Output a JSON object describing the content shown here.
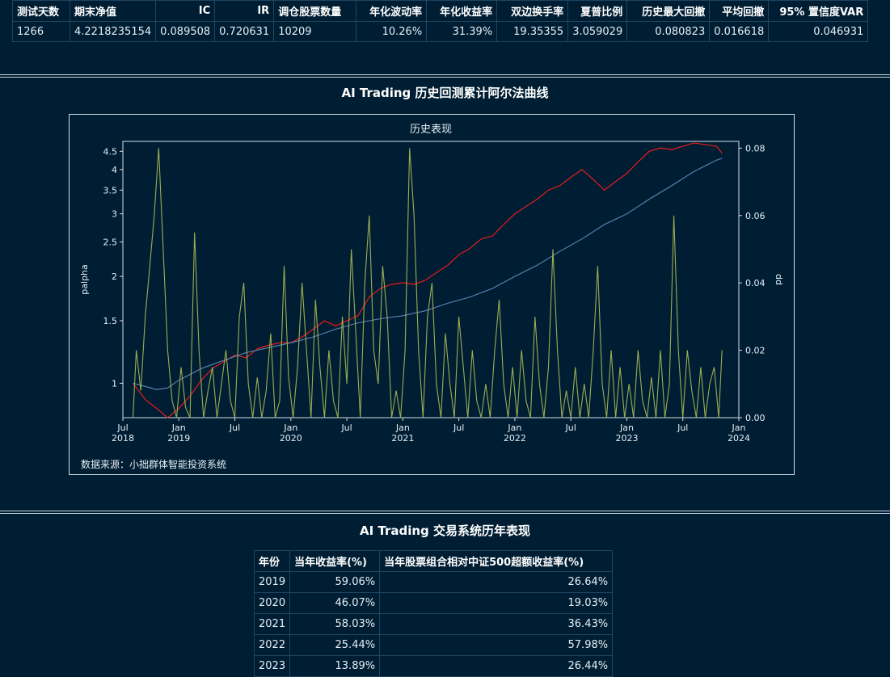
{
  "stats": {
    "headers": [
      "测试天数",
      "期末净值",
      "IC",
      "IR",
      "调仓股票数量",
      "年化波动率",
      "年化收益率",
      "双边换手率",
      "夏普比例",
      "历史最大回撤",
      "平均回撤",
      "95% 置信度VAR"
    ],
    "values": [
      "1266",
      "4.2218235154",
      "0.089508",
      "0.720631",
      "10209",
      "10.26%",
      "31.39%",
      "19.35355",
      "3.059029",
      "0.080823",
      "0.016618",
      "0.046931"
    ]
  },
  "chart_section_title": "AI Trading 历史回测累计阿尔法曲线",
  "chart_data": {
    "type": "line",
    "title": "历史表现",
    "ylabel_left": "palpha",
    "ylabel_right": "dd",
    "yscale_left": "log",
    "ylim_left": [
      0.8,
      4.8
    ],
    "ylim_right": [
      0,
      0.082
    ],
    "yticks_left": [
      "1",
      "1.5",
      "2",
      "2.5",
      "3",
      "3.5",
      "4",
      "4.5"
    ],
    "yticks_right": [
      "0.00",
      "0.02",
      "0.04",
      "0.06",
      "0.08"
    ],
    "xticks": [
      "Jul 2018",
      "Jan 2019",
      "Jul",
      "Jan 2020",
      "Jul",
      "Jan 2021",
      "Jul",
      "Jan 2022",
      "Jul",
      "Jan 2023",
      "Jul",
      "Jan 2024"
    ],
    "x_range": [
      "2018-07",
      "2024-01"
    ],
    "series_colors": {
      "red": "#ff1a1a",
      "blue": "#5b86b8",
      "green": "#9cad52"
    },
    "series": [
      {
        "color": "#ff1a1a",
        "axis": "left",
        "points": [
          [
            2018.59,
            1.0
          ],
          [
            2018.7,
            0.9
          ],
          [
            2018.8,
            0.85
          ],
          [
            2018.9,
            0.8
          ],
          [
            2019.0,
            0.85
          ],
          [
            2019.1,
            0.92
          ],
          [
            2019.2,
            1.02
          ],
          [
            2019.3,
            1.1
          ],
          [
            2019.4,
            1.15
          ],
          [
            2019.5,
            1.2
          ],
          [
            2019.6,
            1.18
          ],
          [
            2019.7,
            1.25
          ],
          [
            2019.8,
            1.28
          ],
          [
            2019.9,
            1.3
          ],
          [
            2020.0,
            1.3
          ],
          [
            2020.1,
            1.35
          ],
          [
            2020.2,
            1.42
          ],
          [
            2020.3,
            1.5
          ],
          [
            2020.4,
            1.45
          ],
          [
            2020.5,
            1.5
          ],
          [
            2020.6,
            1.55
          ],
          [
            2020.7,
            1.75
          ],
          [
            2020.8,
            1.85
          ],
          [
            2020.9,
            1.9
          ],
          [
            2021.0,
            1.92
          ],
          [
            2021.1,
            1.9
          ],
          [
            2021.2,
            1.95
          ],
          [
            2021.3,
            2.05
          ],
          [
            2021.4,
            2.15
          ],
          [
            2021.5,
            2.3
          ],
          [
            2021.6,
            2.4
          ],
          [
            2021.7,
            2.55
          ],
          [
            2021.8,
            2.6
          ],
          [
            2021.9,
            2.8
          ],
          [
            2022.0,
            3.0
          ],
          [
            2022.1,
            3.15
          ],
          [
            2022.2,
            3.3
          ],
          [
            2022.3,
            3.5
          ],
          [
            2022.4,
            3.6
          ],
          [
            2022.5,
            3.8
          ],
          [
            2022.6,
            4.0
          ],
          [
            2022.7,
            3.75
          ],
          [
            2022.8,
            3.5
          ],
          [
            2022.9,
            3.7
          ],
          [
            2023.0,
            3.9
          ],
          [
            2023.1,
            4.2
          ],
          [
            2023.2,
            4.5
          ],
          [
            2023.3,
            4.6
          ],
          [
            2023.4,
            4.55
          ],
          [
            2023.5,
            4.65
          ],
          [
            2023.6,
            4.75
          ],
          [
            2023.7,
            4.7
          ],
          [
            2023.8,
            4.65
          ],
          [
            2023.85,
            4.45
          ]
        ]
      },
      {
        "color": "#5b86b8",
        "axis": "left",
        "points": [
          [
            2018.59,
            1.0
          ],
          [
            2018.7,
            0.98
          ],
          [
            2018.8,
            0.96
          ],
          [
            2018.9,
            0.97
          ],
          [
            2019.0,
            1.02
          ],
          [
            2019.2,
            1.1
          ],
          [
            2019.4,
            1.16
          ],
          [
            2019.6,
            1.22
          ],
          [
            2019.8,
            1.26
          ],
          [
            2020.0,
            1.3
          ],
          [
            2020.2,
            1.35
          ],
          [
            2020.4,
            1.42
          ],
          [
            2020.6,
            1.48
          ],
          [
            2020.8,
            1.52
          ],
          [
            2021.0,
            1.55
          ],
          [
            2021.2,
            1.6
          ],
          [
            2021.4,
            1.68
          ],
          [
            2021.6,
            1.75
          ],
          [
            2021.8,
            1.85
          ],
          [
            2022.0,
            2.0
          ],
          [
            2022.2,
            2.15
          ],
          [
            2022.4,
            2.35
          ],
          [
            2022.6,
            2.55
          ],
          [
            2022.8,
            2.8
          ],
          [
            2023.0,
            3.0
          ],
          [
            2023.2,
            3.3
          ],
          [
            2023.4,
            3.6
          ],
          [
            2023.6,
            3.95
          ],
          [
            2023.8,
            4.25
          ],
          [
            2023.85,
            4.3
          ]
        ]
      },
      {
        "color": "#9cad52",
        "axis": "right",
        "points": [
          [
            2018.59,
            0.0
          ],
          [
            2018.62,
            0.02
          ],
          [
            2018.66,
            0.008
          ],
          [
            2018.7,
            0.03
          ],
          [
            2018.74,
            0.045
          ],
          [
            2018.78,
            0.06
          ],
          [
            2018.82,
            0.08
          ],
          [
            2018.86,
            0.05
          ],
          [
            2018.9,
            0.02
          ],
          [
            2018.94,
            0.005
          ],
          [
            2018.98,
            0.0
          ],
          [
            2019.02,
            0.015
          ],
          [
            2019.06,
            0.003
          ],
          [
            2019.1,
            0.0
          ],
          [
            2019.14,
            0.055
          ],
          [
            2019.18,
            0.02
          ],
          [
            2019.22,
            0.0
          ],
          [
            2019.26,
            0.008
          ],
          [
            2019.3,
            0.015
          ],
          [
            2019.34,
            0.0
          ],
          [
            2019.38,
            0.01
          ],
          [
            2019.42,
            0.02
          ],
          [
            2019.46,
            0.005
          ],
          [
            2019.5,
            0.0
          ],
          [
            2019.54,
            0.03
          ],
          [
            2019.58,
            0.04
          ],
          [
            2019.62,
            0.01
          ],
          [
            2019.66,
            0.0
          ],
          [
            2019.7,
            0.012
          ],
          [
            2019.74,
            0.0
          ],
          [
            2019.78,
            0.008
          ],
          [
            2019.82,
            0.025
          ],
          [
            2019.86,
            0.0
          ],
          [
            2019.9,
            0.005
          ],
          [
            2019.94,
            0.045
          ],
          [
            2019.98,
            0.012
          ],
          [
            2020.02,
            0.0
          ],
          [
            2020.06,
            0.015
          ],
          [
            2020.1,
            0.04
          ],
          [
            2020.14,
            0.02
          ],
          [
            2020.18,
            0.0
          ],
          [
            2020.22,
            0.035
          ],
          [
            2020.26,
            0.015
          ],
          [
            2020.3,
            0.0
          ],
          [
            2020.34,
            0.02
          ],
          [
            2020.38,
            0.005
          ],
          [
            2020.42,
            0.0
          ],
          [
            2020.46,
            0.03
          ],
          [
            2020.5,
            0.01
          ],
          [
            2020.54,
            0.05
          ],
          [
            2020.58,
            0.025
          ],
          [
            2020.62,
            0.0
          ],
          [
            2020.66,
            0.04
          ],
          [
            2020.7,
            0.06
          ],
          [
            2020.74,
            0.02
          ],
          [
            2020.78,
            0.01
          ],
          [
            2020.82,
            0.045
          ],
          [
            2020.86,
            0.03
          ],
          [
            2020.9,
            0.0
          ],
          [
            2020.94,
            0.008
          ],
          [
            2020.98,
            0.0
          ],
          [
            2021.02,
            0.02
          ],
          [
            2021.06,
            0.08
          ],
          [
            2021.1,
            0.06
          ],
          [
            2021.14,
            0.02
          ],
          [
            2021.18,
            0.0
          ],
          [
            2021.22,
            0.03
          ],
          [
            2021.26,
            0.04
          ],
          [
            2021.3,
            0.01
          ],
          [
            2021.34,
            0.0
          ],
          [
            2021.38,
            0.025
          ],
          [
            2021.42,
            0.01
          ],
          [
            2021.46,
            0.0
          ],
          [
            2021.5,
            0.03
          ],
          [
            2021.54,
            0.015
          ],
          [
            2021.58,
            0.0
          ],
          [
            2021.62,
            0.02
          ],
          [
            2021.66,
            0.005
          ],
          [
            2021.7,
            0.0
          ],
          [
            2021.74,
            0.01
          ],
          [
            2021.78,
            0.0
          ],
          [
            2021.82,
            0.02
          ],
          [
            2021.86,
            0.035
          ],
          [
            2021.9,
            0.01
          ],
          [
            2021.94,
            0.0
          ],
          [
            2021.98,
            0.015
          ],
          [
            2022.02,
            0.0
          ],
          [
            2022.06,
            0.02
          ],
          [
            2022.1,
            0.005
          ],
          [
            2022.14,
            0.0
          ],
          [
            2022.18,
            0.03
          ],
          [
            2022.22,
            0.01
          ],
          [
            2022.26,
            0.0
          ],
          [
            2022.3,
            0.015
          ],
          [
            2022.34,
            0.05
          ],
          [
            2022.38,
            0.02
          ],
          [
            2022.42,
            0.0
          ],
          [
            2022.46,
            0.008
          ],
          [
            2022.5,
            0.0
          ],
          [
            2022.54,
            0.015
          ],
          [
            2022.58,
            0.0
          ],
          [
            2022.62,
            0.01
          ],
          [
            2022.66,
            0.0
          ],
          [
            2022.7,
            0.02
          ],
          [
            2022.74,
            0.045
          ],
          [
            2022.78,
            0.01
          ],
          [
            2022.82,
            0.0
          ],
          [
            2022.86,
            0.02
          ],
          [
            2022.9,
            0.0
          ],
          [
            2022.94,
            0.015
          ],
          [
            2022.98,
            0.0
          ],
          [
            2023.02,
            0.01
          ],
          [
            2023.06,
            0.0
          ],
          [
            2023.1,
            0.02
          ],
          [
            2023.14,
            0.005
          ],
          [
            2023.18,
            0.0
          ],
          [
            2023.22,
            0.012
          ],
          [
            2023.26,
            0.0
          ],
          [
            2023.3,
            0.02
          ],
          [
            2023.34,
            0.0
          ],
          [
            2023.38,
            0.01
          ],
          [
            2023.42,
            0.06
          ],
          [
            2023.46,
            0.02
          ],
          [
            2023.5,
            0.0
          ],
          [
            2023.54,
            0.02
          ],
          [
            2023.58,
            0.008
          ],
          [
            2023.62,
            0.0
          ],
          [
            2023.66,
            0.015
          ],
          [
            2023.7,
            0.0
          ],
          [
            2023.74,
            0.01
          ],
          [
            2023.78,
            0.015
          ],
          [
            2023.82,
            0.0
          ],
          [
            2023.85,
            0.02
          ]
        ]
      }
    ]
  },
  "data_source": "数据来源：小拙群体智能投资系统",
  "yearly_section_title": "AI Trading 交易系统历年表现",
  "yearly_table": {
    "headers": [
      "年份",
      "当年收益率(%)",
      "当年股票组合相对中证500超额收益率(%)"
    ],
    "rows": [
      [
        "2019",
        "59.06%",
        "26.64%"
      ],
      [
        "2020",
        "46.07%",
        "19.03%"
      ],
      [
        "2021",
        "58.03%",
        "36.43%"
      ],
      [
        "2022",
        "25.44%",
        "57.98%"
      ],
      [
        "2023",
        "13.89%",
        "26.44%"
      ]
    ]
  }
}
